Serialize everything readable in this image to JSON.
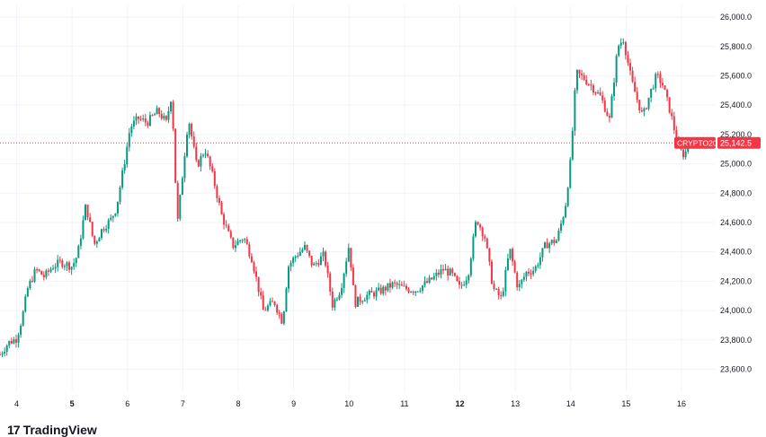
{
  "chart_data": {
    "type": "candlestick",
    "symbol": "CRYPTO20",
    "last_price": 25142.5,
    "last_price_label": "25,142.5",
    "ylim": [
      23450,
      26080
    ],
    "y_ticks": [
      23600,
      23800,
      24000,
      24200,
      24400,
      24600,
      24800,
      25000,
      25200,
      25400,
      25600,
      25800,
      26000
    ],
    "y_tick_labels": [
      "23,600.0",
      "23,800.0",
      "24,000.0",
      "24,200.0",
      "24,400.0",
      "24,600.0",
      "24,800.0",
      "25,000.0",
      "25,200.0",
      "25,400.0",
      "25,600.0",
      "25,800.0",
      "26,000.0"
    ],
    "x_ticks": [
      {
        "label": "4",
        "day": 4,
        "bold": false
      },
      {
        "label": "5",
        "day": 5,
        "bold": true
      },
      {
        "label": "6",
        "day": 6,
        "bold": false
      },
      {
        "label": "7",
        "day": 7,
        "bold": false
      },
      {
        "label": "8",
        "day": 8,
        "bold": false
      },
      {
        "label": "9",
        "day": 9,
        "bold": false
      },
      {
        "label": "10",
        "day": 10,
        "bold": false
      },
      {
        "label": "11",
        "day": 11,
        "bold": false
      },
      {
        "label": "12",
        "day": 12,
        "bold": true
      },
      {
        "label": "13",
        "day": 13,
        "bold": false
      },
      {
        "label": "14",
        "day": 14,
        "bold": false
      },
      {
        "label": "15",
        "day": 15,
        "bold": false
      },
      {
        "label": "16",
        "day": 16,
        "bold": false
      }
    ],
    "x_range": [
      3.7,
      16.6
    ],
    "price_path": [
      [
        3.7,
        23700
      ],
      [
        3.85,
        23780
      ],
      [
        4.0,
        23810
      ],
      [
        4.1,
        23950
      ],
      [
        4.2,
        24150
      ],
      [
        4.35,
        24280
      ],
      [
        4.5,
        24230
      ],
      [
        4.65,
        24300
      ],
      [
        4.8,
        24330
      ],
      [
        5.0,
        24300
      ],
      [
        5.1,
        24380
      ],
      [
        5.25,
        24720
      ],
      [
        5.4,
        24450
      ],
      [
        5.55,
        24560
      ],
      [
        5.7,
        24620
      ],
      [
        5.8,
        24700
      ],
      [
        5.95,
        25020
      ],
      [
        6.05,
        25250
      ],
      [
        6.2,
        25310
      ],
      [
        6.35,
        25280
      ],
      [
        6.55,
        25360
      ],
      [
        6.7,
        25280
      ],
      [
        6.8,
        25480
      ],
      [
        6.9,
        24580
      ],
      [
        7.0,
        24950
      ],
      [
        7.1,
        25320
      ],
      [
        7.25,
        24980
      ],
      [
        7.4,
        25100
      ],
      [
        7.55,
        24900
      ],
      [
        7.7,
        24650
      ],
      [
        7.9,
        24440
      ],
      [
        8.1,
        24500
      ],
      [
        8.25,
        24350
      ],
      [
        8.45,
        24000
      ],
      [
        8.65,
        24060
      ],
      [
        8.8,
        23920
      ],
      [
        8.9,
        24300
      ],
      [
        9.05,
        24380
      ],
      [
        9.2,
        24430
      ],
      [
        9.35,
        24300
      ],
      [
        9.55,
        24380
      ],
      [
        9.7,
        24040
      ],
      [
        9.85,
        24150
      ],
      [
        10.0,
        24450
      ],
      [
        10.1,
        24050
      ],
      [
        10.3,
        24100
      ],
      [
        10.55,
        24130
      ],
      [
        10.8,
        24180
      ],
      [
        11.0,
        24150
      ],
      [
        11.2,
        24140
      ],
      [
        11.45,
        24200
      ],
      [
        11.7,
        24280
      ],
      [
        11.85,
        24250
      ],
      [
        12.0,
        24150
      ],
      [
        12.15,
        24250
      ],
      [
        12.3,
        24630
      ],
      [
        12.45,
        24500
      ],
      [
        12.6,
        24150
      ],
      [
        12.75,
        24080
      ],
      [
        12.9,
        24420
      ],
      [
        13.05,
        24150
      ],
      [
        13.2,
        24260
      ],
      [
        13.35,
        24280
      ],
      [
        13.55,
        24450
      ],
      [
        13.75,
        24480
      ],
      [
        13.9,
        24700
      ],
      [
        14.0,
        25030
      ],
      [
        14.1,
        25620
      ],
      [
        14.25,
        25580
      ],
      [
        14.4,
        25520
      ],
      [
        14.55,
        25450
      ],
      [
        14.7,
        25300
      ],
      [
        14.85,
        25800
      ],
      [
        14.95,
        25850
      ],
      [
        15.1,
        25560
      ],
      [
        15.3,
        25320
      ],
      [
        15.45,
        25500
      ],
      [
        15.55,
        25600
      ],
      [
        15.65,
        25550
      ],
      [
        15.8,
        25350
      ],
      [
        15.95,
        25100
      ],
      [
        16.05,
        25060
      ],
      [
        16.15,
        25142.5
      ]
    ]
  },
  "watermark": {
    "text": "TradingView",
    "logo": "17"
  }
}
